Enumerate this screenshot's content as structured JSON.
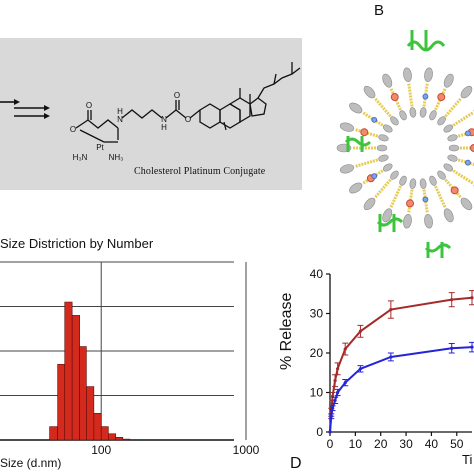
{
  "panel_a": {
    "caption": "Cholesterol Platinum Conjugate",
    "atoms": {
      "o1": "O",
      "o2": "O",
      "o3": "O",
      "o4": "O",
      "n1": "N",
      "n2": "N",
      "h1": "H",
      "h2": "H",
      "pt": "Pt",
      "h3n": "H₃N",
      "nh3": "NH₃"
    }
  },
  "panel_b": {
    "letter": "B"
  },
  "panel_d": {
    "letter": "D"
  },
  "histogram": {
    "title": "Size Distriction by Number",
    "xlabel": "Size (d.nm)"
  },
  "release_chart": {
    "ylabel": "% Release",
    "xlabel_fragment": "Ti"
  },
  "chart_data": [
    {
      "type": "bar",
      "title": "Size Distriction by Number",
      "xlabel": "Size (d.nm)",
      "xscale": "log",
      "xlim": [
        20,
        1000
      ],
      "x_ticks": [
        "100",
        "1000"
      ],
      "bar_color": "#d42a1e",
      "categories": [
        44,
        50,
        56,
        63,
        71,
        79,
        89,
        100,
        112,
        126,
        141
      ],
      "values": [
        3,
        17,
        31,
        28,
        21,
        12,
        6,
        3,
        1.4,
        0.6,
        0.2
      ],
      "ylim": [
        0,
        40
      ],
      "grid": true
    },
    {
      "type": "line",
      "ylabel": "% Release",
      "xlabel": "Ti",
      "ylim": [
        0,
        40
      ],
      "xlim": [
        0,
        56
      ],
      "y_ticks": [
        "0",
        "10",
        "20",
        "30",
        "40"
      ],
      "x_ticks": [
        "0",
        "10",
        "20",
        "30",
        "40",
        "50"
      ],
      "series": [
        {
          "color": "#a52a2a",
          "x": [
            0,
            0.5,
            1,
            2,
            3,
            6,
            12,
            24,
            48,
            56
          ],
          "y": [
            0,
            5,
            9,
            13,
            16,
            21,
            25.5,
            31,
            33.5,
            34
          ],
          "err": [
            0,
            1,
            1,
            1.5,
            1.5,
            1.5,
            1.5,
            2.2,
            1.8,
            1.8
          ]
        },
        {
          "color": "#2424d8",
          "x": [
            0,
            0.5,
            1,
            2,
            3,
            6,
            12,
            24,
            48,
            56
          ],
          "y": [
            0,
            4,
            6,
            8,
            10,
            12.5,
            16,
            19,
            21.2,
            21.5
          ],
          "err": [
            0,
            0.6,
            0.6,
            0.8,
            0.8,
            0.8,
            0.8,
            1,
            1.2,
            1.2
          ]
        }
      ]
    }
  ]
}
